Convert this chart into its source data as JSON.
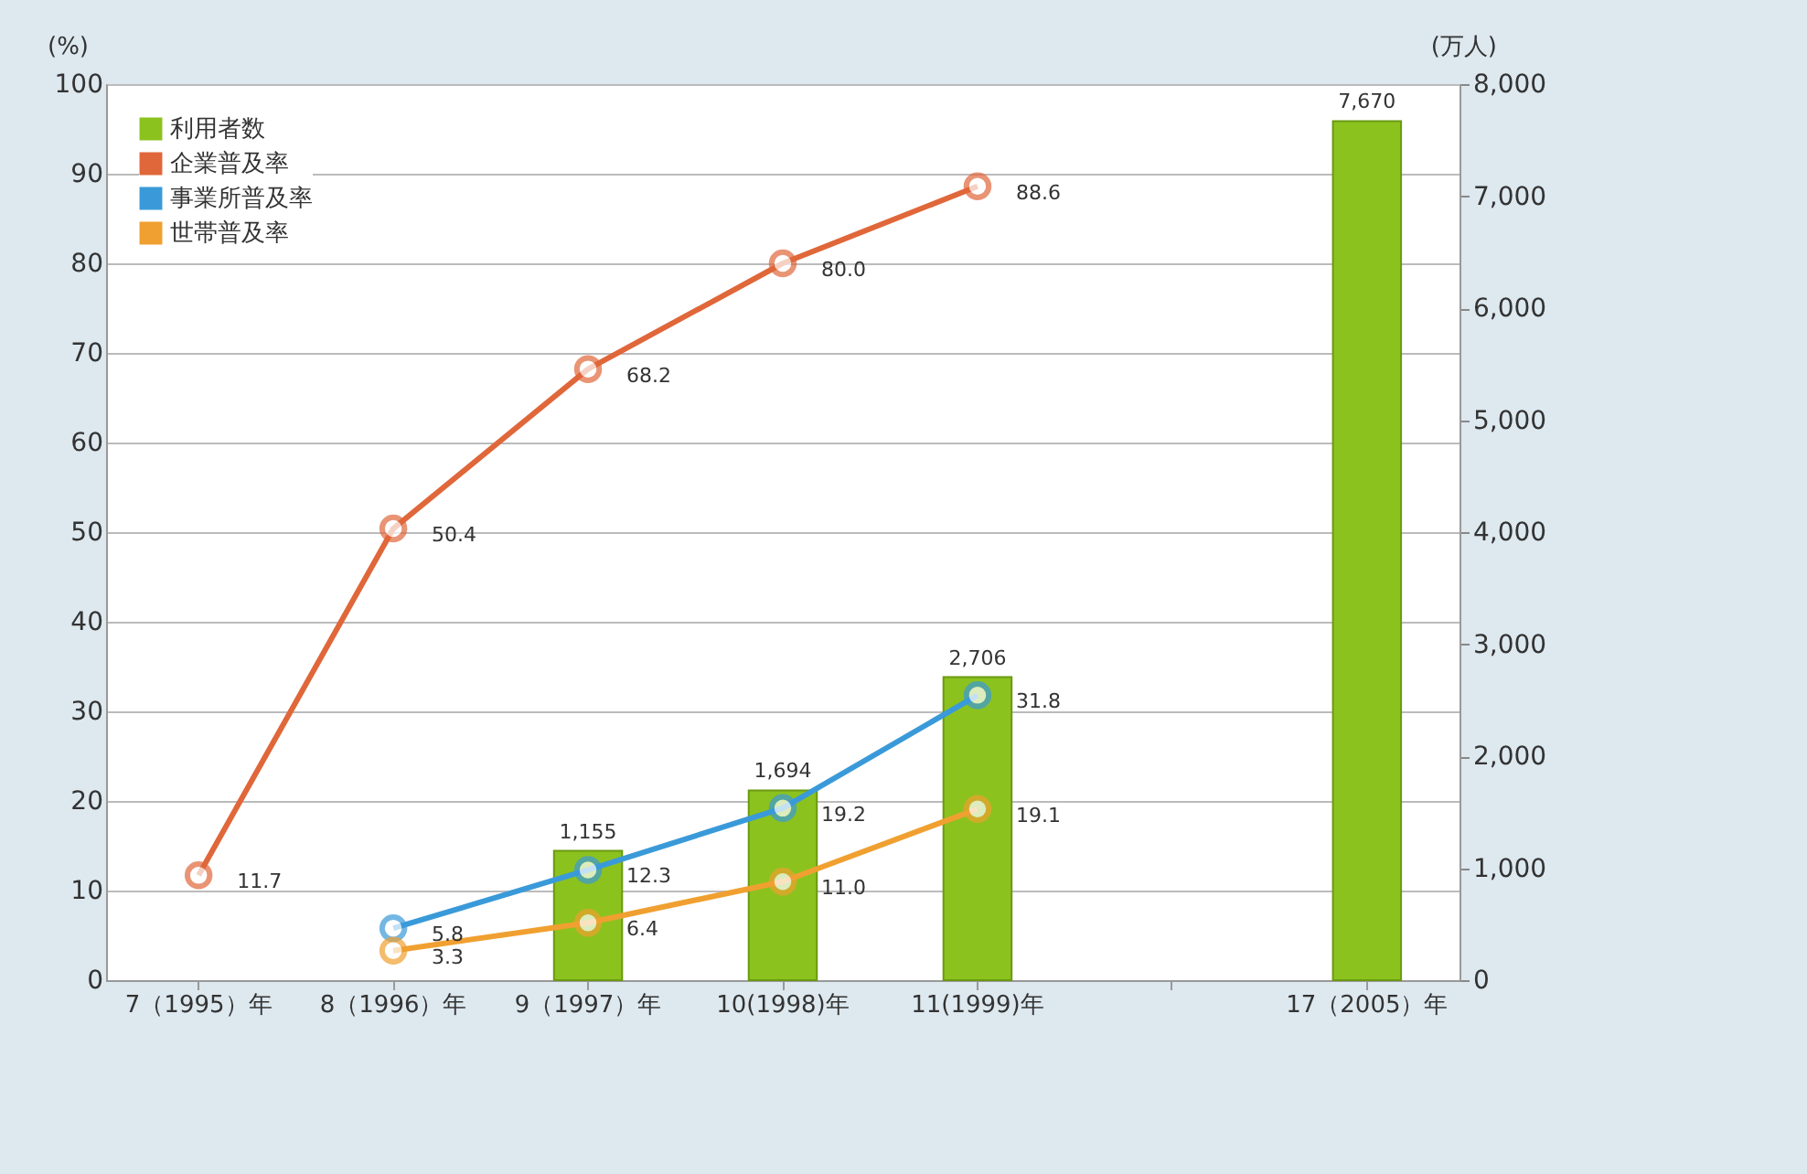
{
  "chart_data": {
    "type": "line",
    "categories": [
      "7（1995）年",
      "8（1996）年",
      "9（1997）年",
      "10(1998)年",
      "11(1999)年",
      null,
      "17（2005）年"
    ],
    "ylabel": "(%)",
    "y2label": "(万人)",
    "ylim": [
      0,
      100
    ],
    "yticks": [
      0,
      10,
      20,
      30,
      40,
      50,
      60,
      70,
      80,
      90,
      100
    ],
    "y2lim": [
      0,
      8000
    ],
    "y2ticks": [
      {
        "value": 0,
        "label": "0"
      },
      {
        "value": 1000,
        "label": "1,000"
      },
      {
        "value": 2000,
        "label": "2,000"
      },
      {
        "value": 3000,
        "label": "3,000"
      },
      {
        "value": 4000,
        "label": "4,000"
      },
      {
        "value": 5000,
        "label": "5,000"
      },
      {
        "value": 6000,
        "label": "6,000"
      },
      {
        "value": 7000,
        "label": "7,000"
      },
      {
        "value": 8000,
        "label": "8,000"
      }
    ],
    "series": [
      {
        "name": "利用者数",
        "type": "bar",
        "axis": "y2",
        "color": "#8cc21e",
        "values": [
          null,
          null,
          1155,
          1694,
          2706,
          null,
          7670
        ],
        "value_labels": [
          null,
          null,
          "1,155",
          "1,694",
          "2,706",
          null,
          "7,670"
        ]
      },
      {
        "name": "企業普及率",
        "type": "line",
        "color": "#e0673a",
        "values": [
          11.7,
          50.4,
          68.2,
          80.0,
          88.6,
          null,
          null
        ],
        "value_labels": [
          "11.7",
          "50.4",
          "68.2",
          "80.0",
          "88.6",
          null,
          null
        ]
      },
      {
        "name": "事業所普及率",
        "type": "line",
        "color": "#3a9ad9",
        "values": [
          null,
          5.8,
          12.3,
          19.2,
          31.8,
          null,
          null
        ],
        "value_labels": [
          null,
          "5.8",
          "12.3",
          "19.2",
          "31.8",
          null,
          null
        ]
      },
      {
        "name": "世帯普及率",
        "type": "line",
        "color": "#f0a030",
        "values": [
          null,
          3.3,
          6.4,
          11.0,
          19.1,
          null,
          null
        ],
        "value_labels": [
          null,
          "3.3",
          "6.4",
          "11.0",
          "19.1",
          null,
          null
        ]
      }
    ],
    "grid": "y",
    "legend": "top left",
    "marker": "circle",
    "line_style": "solid"
  }
}
